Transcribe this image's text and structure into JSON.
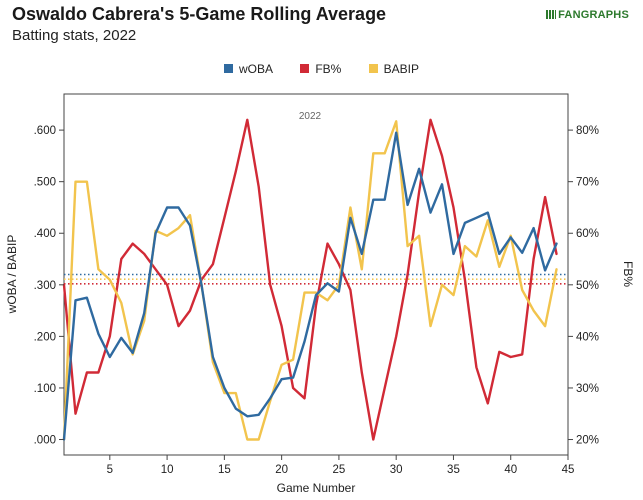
{
  "header": {
    "title": "Oswaldo Cabrera's 5-Game Rolling Average",
    "subtitle": "Batting stats, 2022",
    "brand": "FANGRAPHS"
  },
  "chart_data": {
    "type": "line",
    "title": "Oswaldo Cabrera's 5-Game Rolling Average",
    "subtitle": "Batting stats, 2022",
    "xlabel": "Game Number",
    "ylabel_left": "wOBA / BABIP",
    "ylabel_right": "FB%",
    "annotation": "2022",
    "xlim": [
      1,
      45
    ],
    "ylim_left": [
      -0.03,
      0.67
    ],
    "ylim_right": [
      17,
      87
    ],
    "x_ticks": [
      5,
      10,
      15,
      20,
      25,
      30,
      35,
      40,
      45
    ],
    "y_left_ticks": [
      0,
      0.1,
      0.2,
      0.3,
      0.4,
      0.5,
      0.6
    ],
    "y_left_tick_labels": [
      ".000",
      ".100",
      ".200",
      ".300",
      ".400",
      ".500",
      ".600"
    ],
    "y_right_ticks": [
      20,
      30,
      40,
      50,
      60,
      70,
      80
    ],
    "y_right_tick_labels": [
      "20%",
      "30%",
      "40%",
      "50%",
      "60%",
      "70%",
      "80%"
    ],
    "grid": false,
    "legend_position": "top-center",
    "x": [
      1,
      2,
      3,
      4,
      5,
      6,
      7,
      8,
      9,
      10,
      11,
      12,
      13,
      14,
      15,
      16,
      17,
      18,
      19,
      20,
      21,
      22,
      23,
      24,
      25,
      26,
      27,
      28,
      29,
      30,
      31,
      32,
      33,
      34,
      35,
      36,
      37,
      38,
      39,
      40,
      41,
      42,
      43,
      44
    ],
    "series": [
      {
        "name": "wOBA",
        "axis": "left",
        "color": "#2f6aa0",
        "values": [
          0.0,
          0.27,
          0.275,
          0.205,
          0.16,
          0.197,
          0.168,
          0.245,
          0.4,
          0.45,
          0.45,
          0.415,
          0.3,
          0.16,
          0.1,
          0.06,
          0.045,
          0.048,
          0.08,
          0.117,
          0.12,
          0.19,
          0.28,
          0.303,
          0.287,
          0.43,
          0.36,
          0.465,
          0.465,
          0.595,
          0.455,
          0.525,
          0.44,
          0.495,
          0.36,
          0.42,
          0.43,
          0.44,
          0.36,
          0.392,
          0.362,
          0.41,
          0.328,
          0.38
        ]
      },
      {
        "name": "FB%",
        "axis": "right",
        "color": "#d12a36",
        "values": [
          50,
          25,
          33,
          33,
          40,
          55,
          58,
          56,
          53,
          50,
          42,
          45,
          51,
          54,
          63,
          72,
          82,
          69,
          50,
          42,
          30,
          28,
          46,
          58,
          54,
          49,
          33,
          20,
          30,
          40,
          52,
          68,
          82,
          75,
          65,
          51,
          34,
          27,
          37,
          36,
          36.5,
          55,
          67,
          56
        ]
      },
      {
        "name": "BABIP",
        "axis": "left",
        "color": "#f2c44d",
        "values": [
          0.0,
          0.5,
          0.5,
          0.33,
          0.31,
          0.265,
          0.165,
          0.23,
          0.405,
          0.395,
          0.41,
          0.435,
          0.3,
          0.15,
          0.09,
          0.09,
          0.0,
          0.0,
          0.075,
          0.145,
          0.155,
          0.285,
          0.285,
          0.27,
          0.3,
          0.45,
          0.33,
          0.555,
          0.555,
          0.617,
          0.375,
          0.395,
          0.22,
          0.3,
          0.28,
          0.375,
          0.355,
          0.425,
          0.335,
          0.395,
          0.29,
          0.25,
          0.22,
          0.33
        ]
      }
    ],
    "reference_lines": [
      {
        "axis": "left",
        "value": 0.32,
        "color": "#2f6aa0",
        "style": "dotted"
      },
      {
        "axis": "left",
        "value": 0.302,
        "color": "#d12a36",
        "style": "dotted"
      },
      {
        "axis": "left",
        "value": 0.311,
        "color": "#f2c44d",
        "style": "dotted"
      }
    ]
  }
}
